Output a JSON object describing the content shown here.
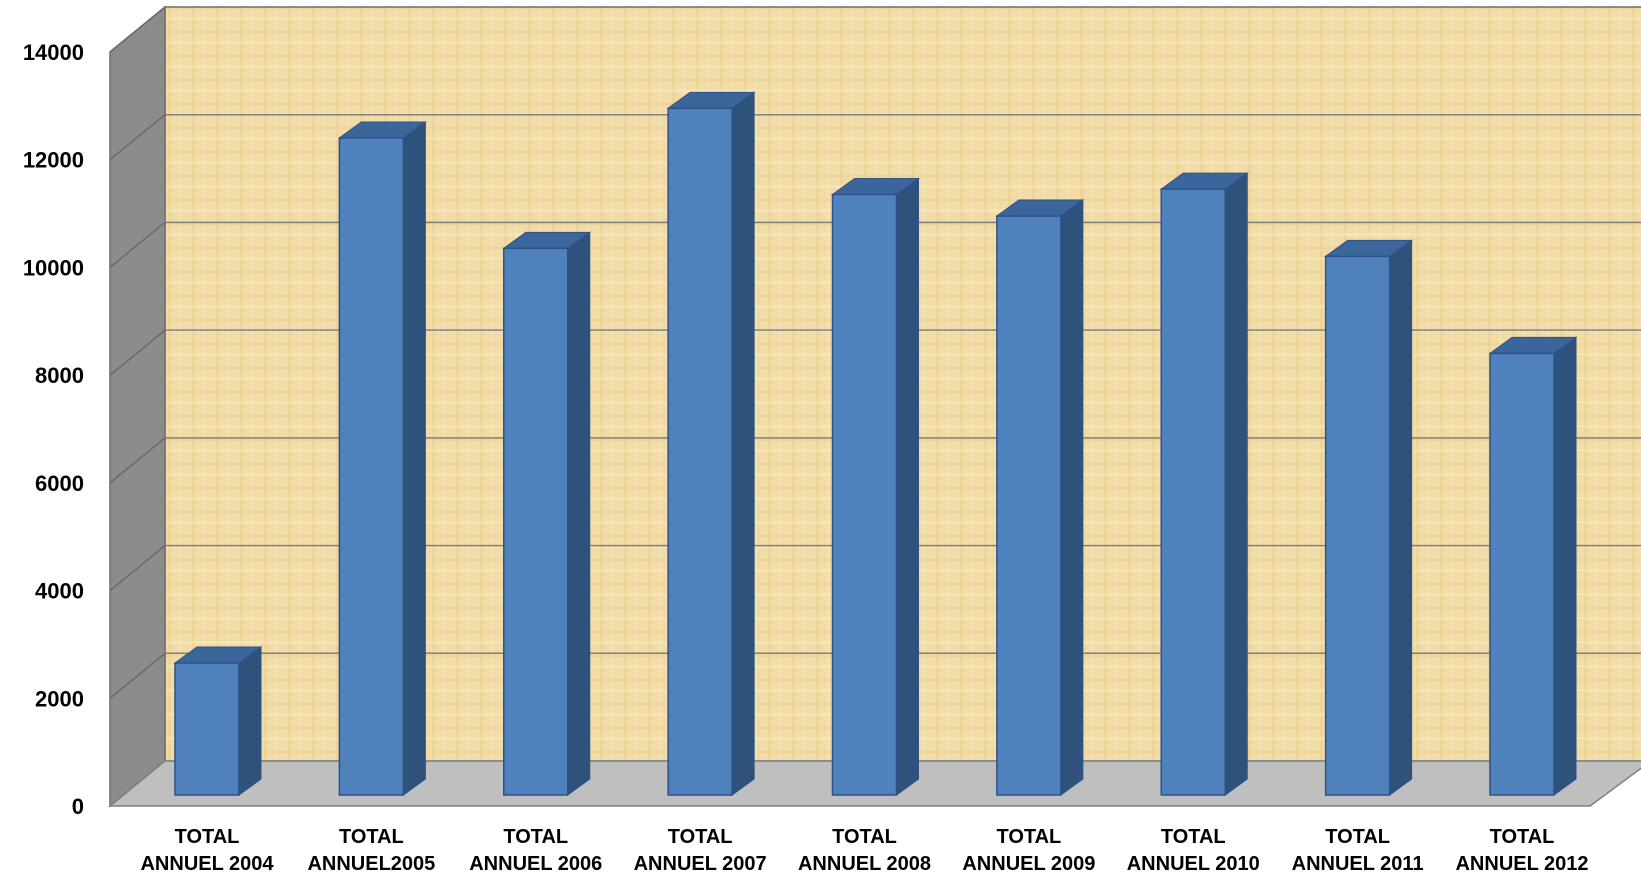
{
  "chart_data": {
    "type": "bar",
    "title": "",
    "xlabel": "",
    "ylabel": "",
    "categories": [
      [
        "TOTAL",
        "ANNUEL 2004"
      ],
      [
        "TOTAL",
        "ANNUEL2005"
      ],
      [
        "TOTAL",
        "ANNUEL 2006"
      ],
      [
        "TOTAL",
        "ANNUEL 2007"
      ],
      [
        "TOTAL",
        "ANNUEL 2008"
      ],
      [
        "TOTAL",
        "ANNUEL 2009"
      ],
      [
        "TOTAL",
        "ANNUEL 2010"
      ],
      [
        "TOTAL",
        "ANNUEL 2011"
      ],
      [
        "TOTAL",
        "ANNUEL 2012"
      ]
    ],
    "values": [
      2450,
      12200,
      10150,
      12750,
      11150,
      10750,
      11250,
      10000,
      8200
    ],
    "ylim": [
      0,
      14000
    ],
    "yticks": [
      "0",
      "2000",
      "4000",
      "6000",
      "8000",
      "10000",
      "12000",
      "14000"
    ],
    "grid": true,
    "legend": "none",
    "style": "3d-column",
    "colors": {
      "bar_front": "#4F81BD",
      "bar_side": "#2F527C",
      "bar_top": "#3A669B",
      "bar_edge": "#2E5286",
      "back_wall": "#EFD8A0",
      "side_wall": "#8C8C8C",
      "floor": "#BFBFBF",
      "gridline": "#7F7F7F"
    }
  }
}
